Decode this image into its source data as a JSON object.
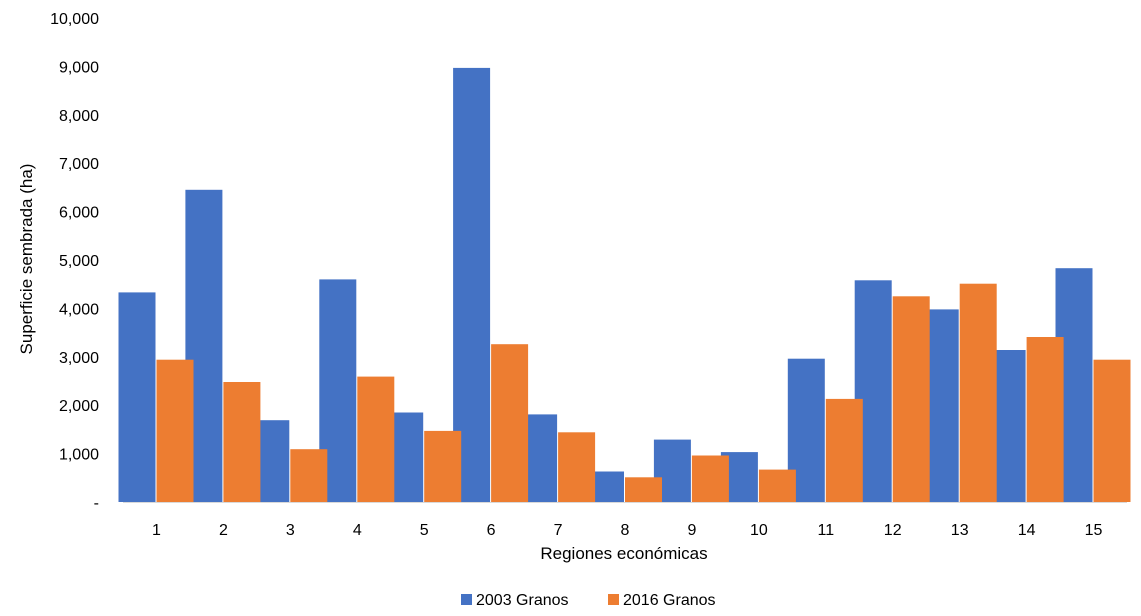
{
  "chart_data": {
    "type": "bar",
    "title": "",
    "xlabel": "Regiones económicas",
    "ylabel": "Superficie sembrada (ha)",
    "ylim": [
      0,
      10000
    ],
    "yticks": [
      0,
      1000,
      2000,
      3000,
      4000,
      5000,
      6000,
      7000,
      8000,
      9000,
      10000
    ],
    "ytick_labels": [
      "-",
      "1,000",
      "2,000",
      "3,000",
      "4,000",
      "5,000",
      "6,000",
      "7,000",
      "8,000",
      "9,000",
      "10,000"
    ],
    "categories": [
      "1",
      "2",
      "3",
      "4",
      "5",
      "6",
      "7",
      "8",
      "9",
      "10",
      "11",
      "12",
      "13",
      "14",
      "15"
    ],
    "series": [
      {
        "name": "2003 Granos",
        "color": "#4472C4",
        "values": [
          4330,
          6450,
          1690,
          4600,
          1850,
          8970,
          1810,
          630,
          1290,
          1030,
          2960,
          4580,
          3980,
          3140,
          4830
        ]
      },
      {
        "name": "2016 Granos",
        "color": "#ED7D31",
        "values": [
          2940,
          2480,
          1090,
          2590,
          1470,
          3260,
          1440,
          510,
          960,
          670,
          2130,
          4250,
          4510,
          3410,
          2940
        ]
      }
    ],
    "grid": false,
    "legend": "bottom"
  }
}
